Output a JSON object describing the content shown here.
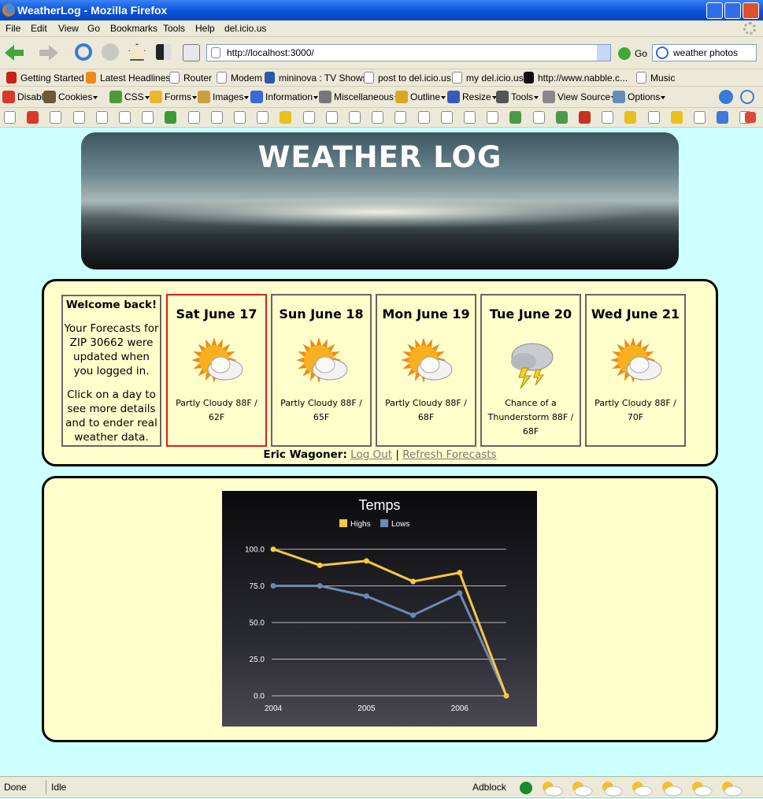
{
  "browser": {
    "window_title": "WeatherLog - Mozilla Firefox",
    "menu": [
      "File",
      "Edit",
      "View",
      "Go",
      "Bookmarks",
      "Tools",
      "Help",
      "del.icio.us"
    ],
    "url": "http://localhost:3000/",
    "go": "Go",
    "search": "weather photos",
    "bookmarks": [
      "Getting Started",
      "Latest Headlines",
      "Router",
      "Modem",
      "mininova : TV Shows",
      "post to del.icio.us",
      "my del.icio.us",
      "http://www.nabble.c...",
      "Music"
    ],
    "webdev": [
      "Disable",
      "Cookies",
      "CSS",
      "Forms",
      "Images",
      "Information",
      "Miscellaneous",
      "Outline",
      "Resize",
      "Tools",
      "View Source",
      "Options"
    ],
    "status": {
      "message": "Done",
      "state": "Idle",
      "adblock": "Adblock"
    }
  },
  "page": {
    "title": "WEATHER LOG",
    "welcome": {
      "heading": "Welcome back!",
      "updated": "Your Forecasts for ZIP 30662 were updated when you logged in.",
      "hint": "Click on a day to see more details and to ender real weather data."
    },
    "days": [
      {
        "date": "Sat June 17",
        "forecast": "Partly Cloudy 88F / 62F"
      },
      {
        "date": "Sun June 18",
        "forecast": "Partly Cloudy 88F / 65F"
      },
      {
        "date": "Mon June 19",
        "forecast": "Partly Cloudy 88F / 68F"
      },
      {
        "date": "Tue June 20",
        "forecast": "Chance of a Thunderstorm 88F / 68F"
      },
      {
        "date": "Wed June 21",
        "forecast": "Partly Cloudy 88F / 70F"
      }
    ],
    "user": "Eric Wagoner:",
    "logout": "Log Out",
    "separator": "|",
    "refresh": "Refresh Forecasts"
  },
  "chart_data": {
    "type": "line",
    "title": "Temps",
    "categories": [
      "2004",
      null,
      "2005",
      null,
      "2006",
      null
    ],
    "series": [
      {
        "name": "Highs",
        "color": "#f7c744",
        "values": [
          100,
          89,
          92,
          78,
          84,
          0
        ]
      },
      {
        "name": "Lows",
        "color": "#6d89b3",
        "values": [
          75,
          75,
          68,
          55,
          70,
          0
        ]
      }
    ],
    "ylim": [
      0,
      100
    ],
    "yticks": [
      {
        "value": 0,
        "label": "0.0"
      },
      {
        "value": 25,
        "label": "25.0"
      },
      {
        "value": 50,
        "label": "50.0"
      },
      {
        "value": 75,
        "label": "75.0"
      },
      {
        "value": 100,
        "label": "100.0"
      }
    ],
    "grid": true
  }
}
